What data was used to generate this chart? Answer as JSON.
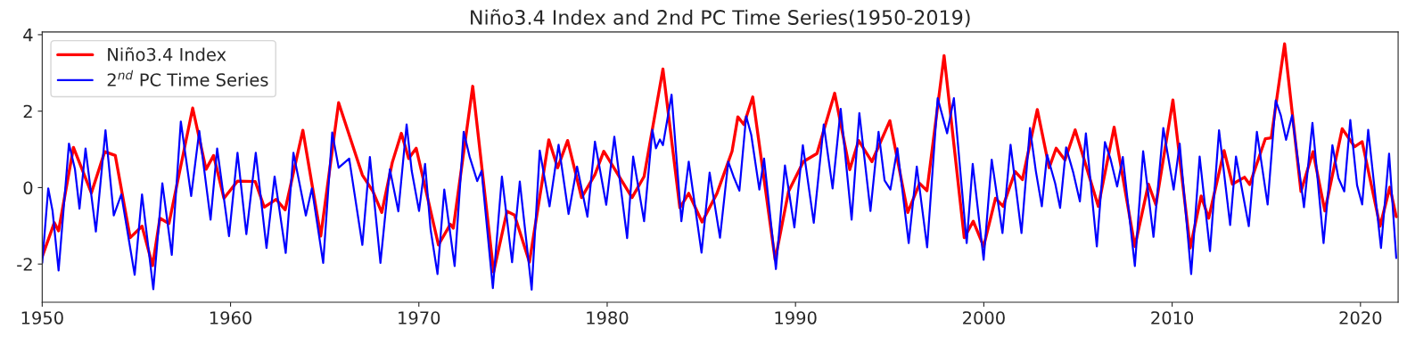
{
  "chart_data": {
    "type": "line",
    "title": "Niño3.4 Index and 2nd PC Time Series(1950-2019)",
    "xlim": [
      1950,
      2022
    ],
    "xticks": [
      1950,
      1960,
      1970,
      1980,
      1990,
      2000,
      2010,
      2020
    ],
    "ylim": [
      -3,
      4.07
    ],
    "yticks": [
      -2,
      0,
      2,
      4
    ],
    "grid": false,
    "legend": "top left",
    "line_style": "solid",
    "marker": "none",
    "series": [
      {
        "name": "Niño3.4 Index",
        "color": "#ff0000",
        "x": [
          1950.0,
          1950.64,
          1950.87,
          1951.66,
          1952.61,
          1953.32,
          1953.88,
          1954.67,
          1955.3,
          1955.86,
          1956.25,
          1956.73,
          1957.99,
          1958.7,
          1959.1,
          1959.65,
          1960.37,
          1961.31,
          1961.79,
          1962.42,
          1962.9,
          1963.84,
          1964.79,
          1965.74,
          1967.0,
          1967.56,
          1968.03,
          1968.59,
          1969.07,
          1969.46,
          1969.86,
          1971.04,
          1971.67,
          1971.83,
          1972.86,
          1973.97,
          1974.68,
          1975.08,
          1975.87,
          1976.9,
          1977.37,
          1977.9,
          1978.64,
          1979.35,
          1979.82,
          1981.32,
          1981.96,
          1982.96,
          1983.86,
          1984.33,
          1985.04,
          1985.83,
          1986.63,
          1986.94,
          1987.26,
          1987.73,
          1988.92,
          1989.63,
          1990.42,
          1991.14,
          1992.08,
          1992.88,
          1993.35,
          1994.06,
          1995.01,
          1995.96,
          1996.59,
          1996.98,
          1997.89,
          1998.96,
          1999.44,
          1999.99,
          2000.62,
          2001.02,
          2001.66,
          2002.05,
          2002.84,
          2003.47,
          2003.84,
          2004.31,
          2004.85,
          2006.08,
          2006.92,
          2008.02,
          2008.74,
          2009.14,
          2010.04,
          2010.96,
          2011.54,
          2011.94,
          2012.76,
          2013.2,
          2013.84,
          2014.12,
          2014.95,
          2015.26,
          2015.97,
          2016.84,
          2017.48,
          2018.11,
          2019.03,
          2019.69,
          2020.09,
          2021.04,
          2021.56,
          2021.9
        ],
        "values": [
          -1.81,
          -0.92,
          -1.13,
          1.05,
          -0.14,
          0.94,
          0.84,
          -1.31,
          -1.01,
          -2.04,
          -0.8,
          -0.94,
          2.08,
          0.48,
          0.84,
          -0.28,
          0.17,
          0.16,
          -0.51,
          -0.31,
          -0.58,
          1.5,
          -1.27,
          2.22,
          0.33,
          -0.1,
          -0.65,
          0.66,
          1.42,
          0.76,
          1.03,
          -1.5,
          -0.96,
          -1.06,
          2.65,
          -2.21,
          -0.62,
          -0.72,
          -1.95,
          1.25,
          0.52,
          1.23,
          -0.26,
          0.34,
          0.95,
          -0.26,
          0.29,
          3.1,
          -0.53,
          -0.15,
          -0.9,
          -0.15,
          0.95,
          1.85,
          1.65,
          2.37,
          -1.89,
          -0.1,
          0.68,
          0.89,
          2.47,
          0.47,
          1.23,
          0.68,
          1.75,
          -0.65,
          0.11,
          -0.08,
          3.45,
          -1.31,
          -0.88,
          -1.54,
          -0.28,
          -0.49,
          0.42,
          0.21,
          2.04,
          0.52,
          1.03,
          0.72,
          1.51,
          -0.49,
          1.58,
          -1.54,
          0.09,
          -0.45,
          2.29,
          -1.58,
          -0.22,
          -0.8,
          0.97,
          0.09,
          0.27,
          0.08,
          1.28,
          1.3,
          3.76,
          -0.1,
          0.94,
          -0.61,
          1.54,
          1.07,
          1.2,
          -1.01,
          0.01,
          -0.76
        ]
      },
      {
        "name": "2$^{nd}$ PC Time Series",
        "color": "#0000ff",
        "x": [
          1950.0,
          1950.32,
          1950.55,
          1950.87,
          1951.42,
          1951.74,
          1951.98,
          1952.3,
          1952.85,
          1953.36,
          1953.8,
          1954.2,
          1954.91,
          1955.3,
          1955.9,
          1956.38,
          1956.88,
          1957.36,
          1957.91,
          1958.34,
          1958.94,
          1959.29,
          1959.92,
          1960.37,
          1960.84,
          1961.34,
          1961.91,
          1962.34,
          1962.93,
          1963.34,
          1964.0,
          1964.32,
          1964.92,
          1965.4,
          1965.74,
          1966.3,
          1967.0,
          1967.4,
          1967.96,
          1968.46,
          1968.91,
          1969.35,
          1969.62,
          1970.01,
          1970.33,
          1970.62,
          1970.99,
          1971.35,
          1971.9,
          1972.38,
          1972.7,
          1973.1,
          1973.33,
          1973.93,
          1974.41,
          1974.95,
          1975.36,
          1975.99,
          1976.42,
          1976.94,
          1977.42,
          1977.95,
          1978.4,
          1978.95,
          1979.35,
          1979.95,
          1980.38,
          1981.06,
          1981.38,
          1981.96,
          1982.4,
          1982.59,
          1982.8,
          1982.96,
          1983.42,
          1983.94,
          1984.33,
          1985.01,
          1985.44,
          1985.99,
          1986.43,
          1986.71,
          1987.02,
          1987.38,
          1987.65,
          1988.08,
          1988.33,
          1988.96,
          1989.44,
          1989.94,
          1990.39,
          1990.97,
          1991.5,
          1991.97,
          1992.4,
          1992.98,
          1993.39,
          1993.98,
          1994.41,
          1994.73,
          1995.04,
          1995.41,
          1996.01,
          1996.44,
          1996.99,
          1997.55,
          1998.05,
          1998.41,
          1999.09,
          1999.41,
          1999.99,
          2000.42,
          2000.99,
          2001.42,
          2002.0,
          2002.45,
          2002.76,
          2003.08,
          2003.36,
          2003.79,
          2004.05,
          2004.37,
          2004.74,
          2005.1,
          2005.42,
          2006.0,
          2006.43,
          2006.72,
          2007.08,
          2007.38,
          2008.02,
          2008.46,
          2009.01,
          2009.53,
          2010.08,
          2010.4,
          2011.01,
          2011.46,
          2012.01,
          2012.49,
          2013.08,
          2013.39,
          2014.07,
          2014.5,
          2015.07,
          2015.5,
          2015.77,
          2016.05,
          2016.37,
          2017.0,
          2017.45,
          2018.04,
          2018.51,
          2018.83,
          2019.14,
          2019.46,
          2019.82,
          2020.09,
          2020.41,
          2021.09,
          2021.52,
          2021.9
        ],
        "values": [
          -1.97,
          -0.02,
          -0.61,
          -2.17,
          1.15,
          0.48,
          -0.55,
          1.02,
          -1.15,
          1.5,
          -0.73,
          -0.18,
          -2.28,
          -0.18,
          -2.66,
          0.11,
          -1.76,
          1.73,
          -0.22,
          1.48,
          -0.84,
          1.02,
          -1.27,
          0.91,
          -1.22,
          0.91,
          -1.58,
          0.29,
          -1.71,
          0.91,
          -0.73,
          -0.02,
          -1.97,
          1.44,
          0.52,
          0.76,
          -1.5,
          0.8,
          -1.97,
          0.48,
          -0.62,
          1.65,
          0.44,
          -0.61,
          0.62,
          -1.08,
          -2.26,
          -0.05,
          -2.05,
          1.46,
          0.8,
          0.17,
          0.44,
          -2.63,
          0.29,
          -1.95,
          0.16,
          -2.67,
          0.97,
          -0.49,
          1.12,
          -0.69,
          0.55,
          -0.76,
          1.2,
          -0.45,
          1.33,
          -1.32,
          0.81,
          -0.88,
          1.51,
          1.03,
          1.26,
          1.11,
          2.43,
          -0.88,
          0.68,
          -1.7,
          0.39,
          -1.31,
          0.68,
          0.29,
          -0.08,
          1.87,
          1.38,
          -0.05,
          0.76,
          -2.13,
          0.58,
          -1.04,
          1.11,
          -0.92,
          1.65,
          -0.02,
          2.06,
          -0.84,
          1.95,
          -0.61,
          1.46,
          0.19,
          -0.05,
          1.03,
          -1.45,
          0.55,
          -1.56,
          2.34,
          1.42,
          2.34,
          -1.45,
          0.62,
          -1.89,
          0.73,
          -1.19,
          1.12,
          -1.19,
          1.56,
          0.44,
          -0.49,
          0.86,
          0.11,
          -0.53,
          1.05,
          0.41,
          -0.36,
          1.42,
          -1.54,
          1.19,
          0.76,
          0.03,
          0.8,
          -2.05,
          0.95,
          -1.29,
          1.56,
          -0.05,
          1.15,
          -2.26,
          0.81,
          -1.66,
          1.5,
          -0.98,
          0.81,
          -1.01,
          1.46,
          -0.44,
          2.28,
          1.89,
          1.25,
          1.89,
          -0.51,
          1.69,
          -1.45,
          1.11,
          0.25,
          -0.1,
          1.77,
          0.06,
          -0.44,
          1.51,
          -1.58,
          0.89,
          -1.84
        ]
      }
    ]
  }
}
